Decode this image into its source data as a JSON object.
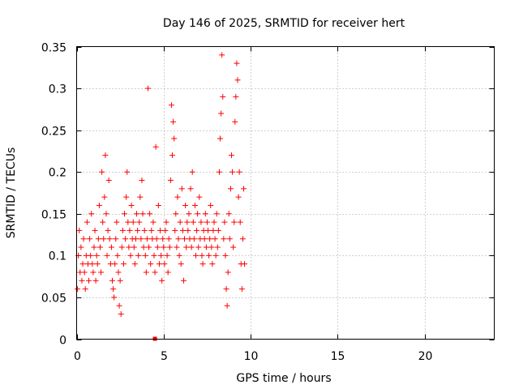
{
  "chart_data": {
    "type": "scatter",
    "title": "Day 146 of 2025, SRMTID for receiver hert",
    "xlabel": "GPS time / hours",
    "ylabel": "SRMTID / TECUs",
    "xlim": [
      0,
      24
    ],
    "ylim": [
      0,
      0.35
    ],
    "xticks": [
      0,
      5,
      10,
      15,
      20
    ],
    "yticks": [
      0,
      0.05,
      0.1,
      0.15,
      0.2,
      0.25,
      0.3,
      0.35
    ],
    "xtick_labels": [
      "0",
      "5",
      "10",
      "15",
      "20"
    ],
    "ytick_labels": [
      "0",
      "0.05",
      "0.1",
      "0.15",
      "0.2",
      "0.25",
      "0.3",
      "0.35"
    ],
    "grid": true,
    "marker": "+",
    "color": "#ff0000",
    "series": [
      {
        "x": [
          0.05,
          0.1,
          0.15,
          0.2,
          0.25,
          0.3,
          0.35,
          0.4,
          0.45,
          0.5,
          0.55,
          0.6,
          0.65,
          0.7,
          0.75,
          0.8,
          0.85,
          0.9,
          0.95,
          1.0,
          1.05,
          1.1,
          1.15,
          1.2,
          1.25,
          1.3,
          1.35,
          1.4,
          1.45,
          1.5,
          1.55,
          1.6,
          1.65,
          1.7,
          1.75,
          1.8,
          1.85,
          1.9,
          1.95,
          2.0,
          2.05,
          2.1,
          2.15,
          2.2,
          2.25,
          2.3,
          2.35,
          2.4,
          2.45,
          2.5,
          2.55,
          2.6,
          2.65,
          2.7,
          2.75,
          2.8,
          2.85,
          2.9,
          2.95,
          3.0,
          3.05,
          3.1,
          3.15,
          3.2,
          3.25,
          3.3,
          3.35,
          3.4,
          3.45,
          3.5,
          3.55,
          3.6,
          3.65,
          3.7,
          3.75,
          3.8,
          3.85,
          3.9,
          3.95,
          4.0,
          4.05,
          4.1,
          4.15,
          4.2,
          4.25,
          4.3,
          4.35,
          4.4,
          4.45,
          4.5,
          4.55,
          4.6,
          4.65,
          4.7,
          4.75,
          4.8,
          4.85,
          4.9,
          4.95,
          5.0,
          5.05,
          5.1,
          5.15,
          5.2,
          5.25,
          5.3,
          5.35,
          5.4,
          5.45,
          5.5,
          5.55,
          5.6,
          5.65,
          5.7,
          5.75,
          5.8,
          5.85,
          5.9,
          5.95,
          6.0,
          6.05,
          6.1,
          6.15,
          6.2,
          6.25,
          6.3,
          6.35,
          6.4,
          6.45,
          6.5,
          6.55,
          6.6,
          6.65,
          6.7,
          6.75,
          6.8,
          6.85,
          6.9,
          6.95,
          7.0,
          7.05,
          7.1,
          7.15,
          7.2,
          7.25,
          7.3,
          7.35,
          7.4,
          7.45,
          7.5,
          7.55,
          7.6,
          7.65,
          7.7,
          7.75,
          7.8,
          7.85,
          7.9,
          7.95,
          8.0,
          8.05,
          8.1,
          8.15,
          8.2,
          8.25,
          8.3,
          8.35,
          8.4,
          8.45,
          8.5,
          8.55,
          8.6,
          8.65,
          8.7,
          8.75,
          8.8,
          8.85,
          8.9,
          8.95,
          9.0,
          9.05,
          9.1,
          9.15,
          9.2,
          9.25,
          9.3,
          9.35,
          9.4,
          9.45,
          9.5,
          9.55,
          9.6,
          9.65
        ],
        "y": [
          0.06,
          0.1,
          0.13,
          0.08,
          0.11,
          0.07,
          0.09,
          0.12,
          0.08,
          0.06,
          0.1,
          0.14,
          0.09,
          0.07,
          0.12,
          0.1,
          0.15,
          0.09,
          0.08,
          0.11,
          0.13,
          0.07,
          0.1,
          0.09,
          0.12,
          0.16,
          0.11,
          0.08,
          0.2,
          0.14,
          0.12,
          0.17,
          0.22,
          0.15,
          0.1,
          0.13,
          0.19,
          0.12,
          0.09,
          0.11,
          0.07,
          0.06,
          0.05,
          0.09,
          0.12,
          0.14,
          0.1,
          0.08,
          0.04,
          0.07,
          0.03,
          0.11,
          0.13,
          0.09,
          0.15,
          0.12,
          0.17,
          0.2,
          0.14,
          0.11,
          0.13,
          0.1,
          0.16,
          0.12,
          0.14,
          0.11,
          0.09,
          0.12,
          0.15,
          0.13,
          0.1,
          0.14,
          0.17,
          0.12,
          0.19,
          0.15,
          0.11,
          0.13,
          0.1,
          0.08,
          0.12,
          0.3,
          0.11,
          0.15,
          0.09,
          0.13,
          0.12,
          0.14,
          0.1,
          0.08,
          0.23,
          0.12,
          0.11,
          0.16,
          0.09,
          0.13,
          0.1,
          0.07,
          0.12,
          0.11,
          0.09,
          0.13,
          0.14,
          0.1,
          0.08,
          0.12,
          0.11,
          0.19,
          0.28,
          0.22,
          0.26,
          0.24,
          0.13,
          0.15,
          0.11,
          0.17,
          0.12,
          0.1,
          0.14,
          0.09,
          0.18,
          0.13,
          0.07,
          0.12,
          0.16,
          0.11,
          0.14,
          0.13,
          0.15,
          0.12,
          0.18,
          0.11,
          0.2,
          0.14,
          0.12,
          0.16,
          0.1,
          0.13,
          0.15,
          0.11,
          0.17,
          0.12,
          0.14,
          0.1,
          0.09,
          0.13,
          0.12,
          0.15,
          0.11,
          0.14,
          0.13,
          0.1,
          0.12,
          0.16,
          0.11,
          0.09,
          0.13,
          0.14,
          0.12,
          0.1,
          0.15,
          0.11,
          0.13,
          0.2,
          0.24,
          0.27,
          0.34,
          0.29,
          0.12,
          0.14,
          0.1,
          0.06,
          0.04,
          0.08,
          0.15,
          0.12,
          0.18,
          0.22,
          0.2,
          0.11,
          0.14,
          0.26,
          0.29,
          0.33,
          0.31,
          0.17,
          0.2,
          0.14,
          0.09,
          0.06,
          0.12,
          0.18,
          0.09
        ]
      }
    ],
    "extra_points": [
      {
        "x": 4.5,
        "y": 0.0,
        "marker": "square"
      }
    ]
  }
}
